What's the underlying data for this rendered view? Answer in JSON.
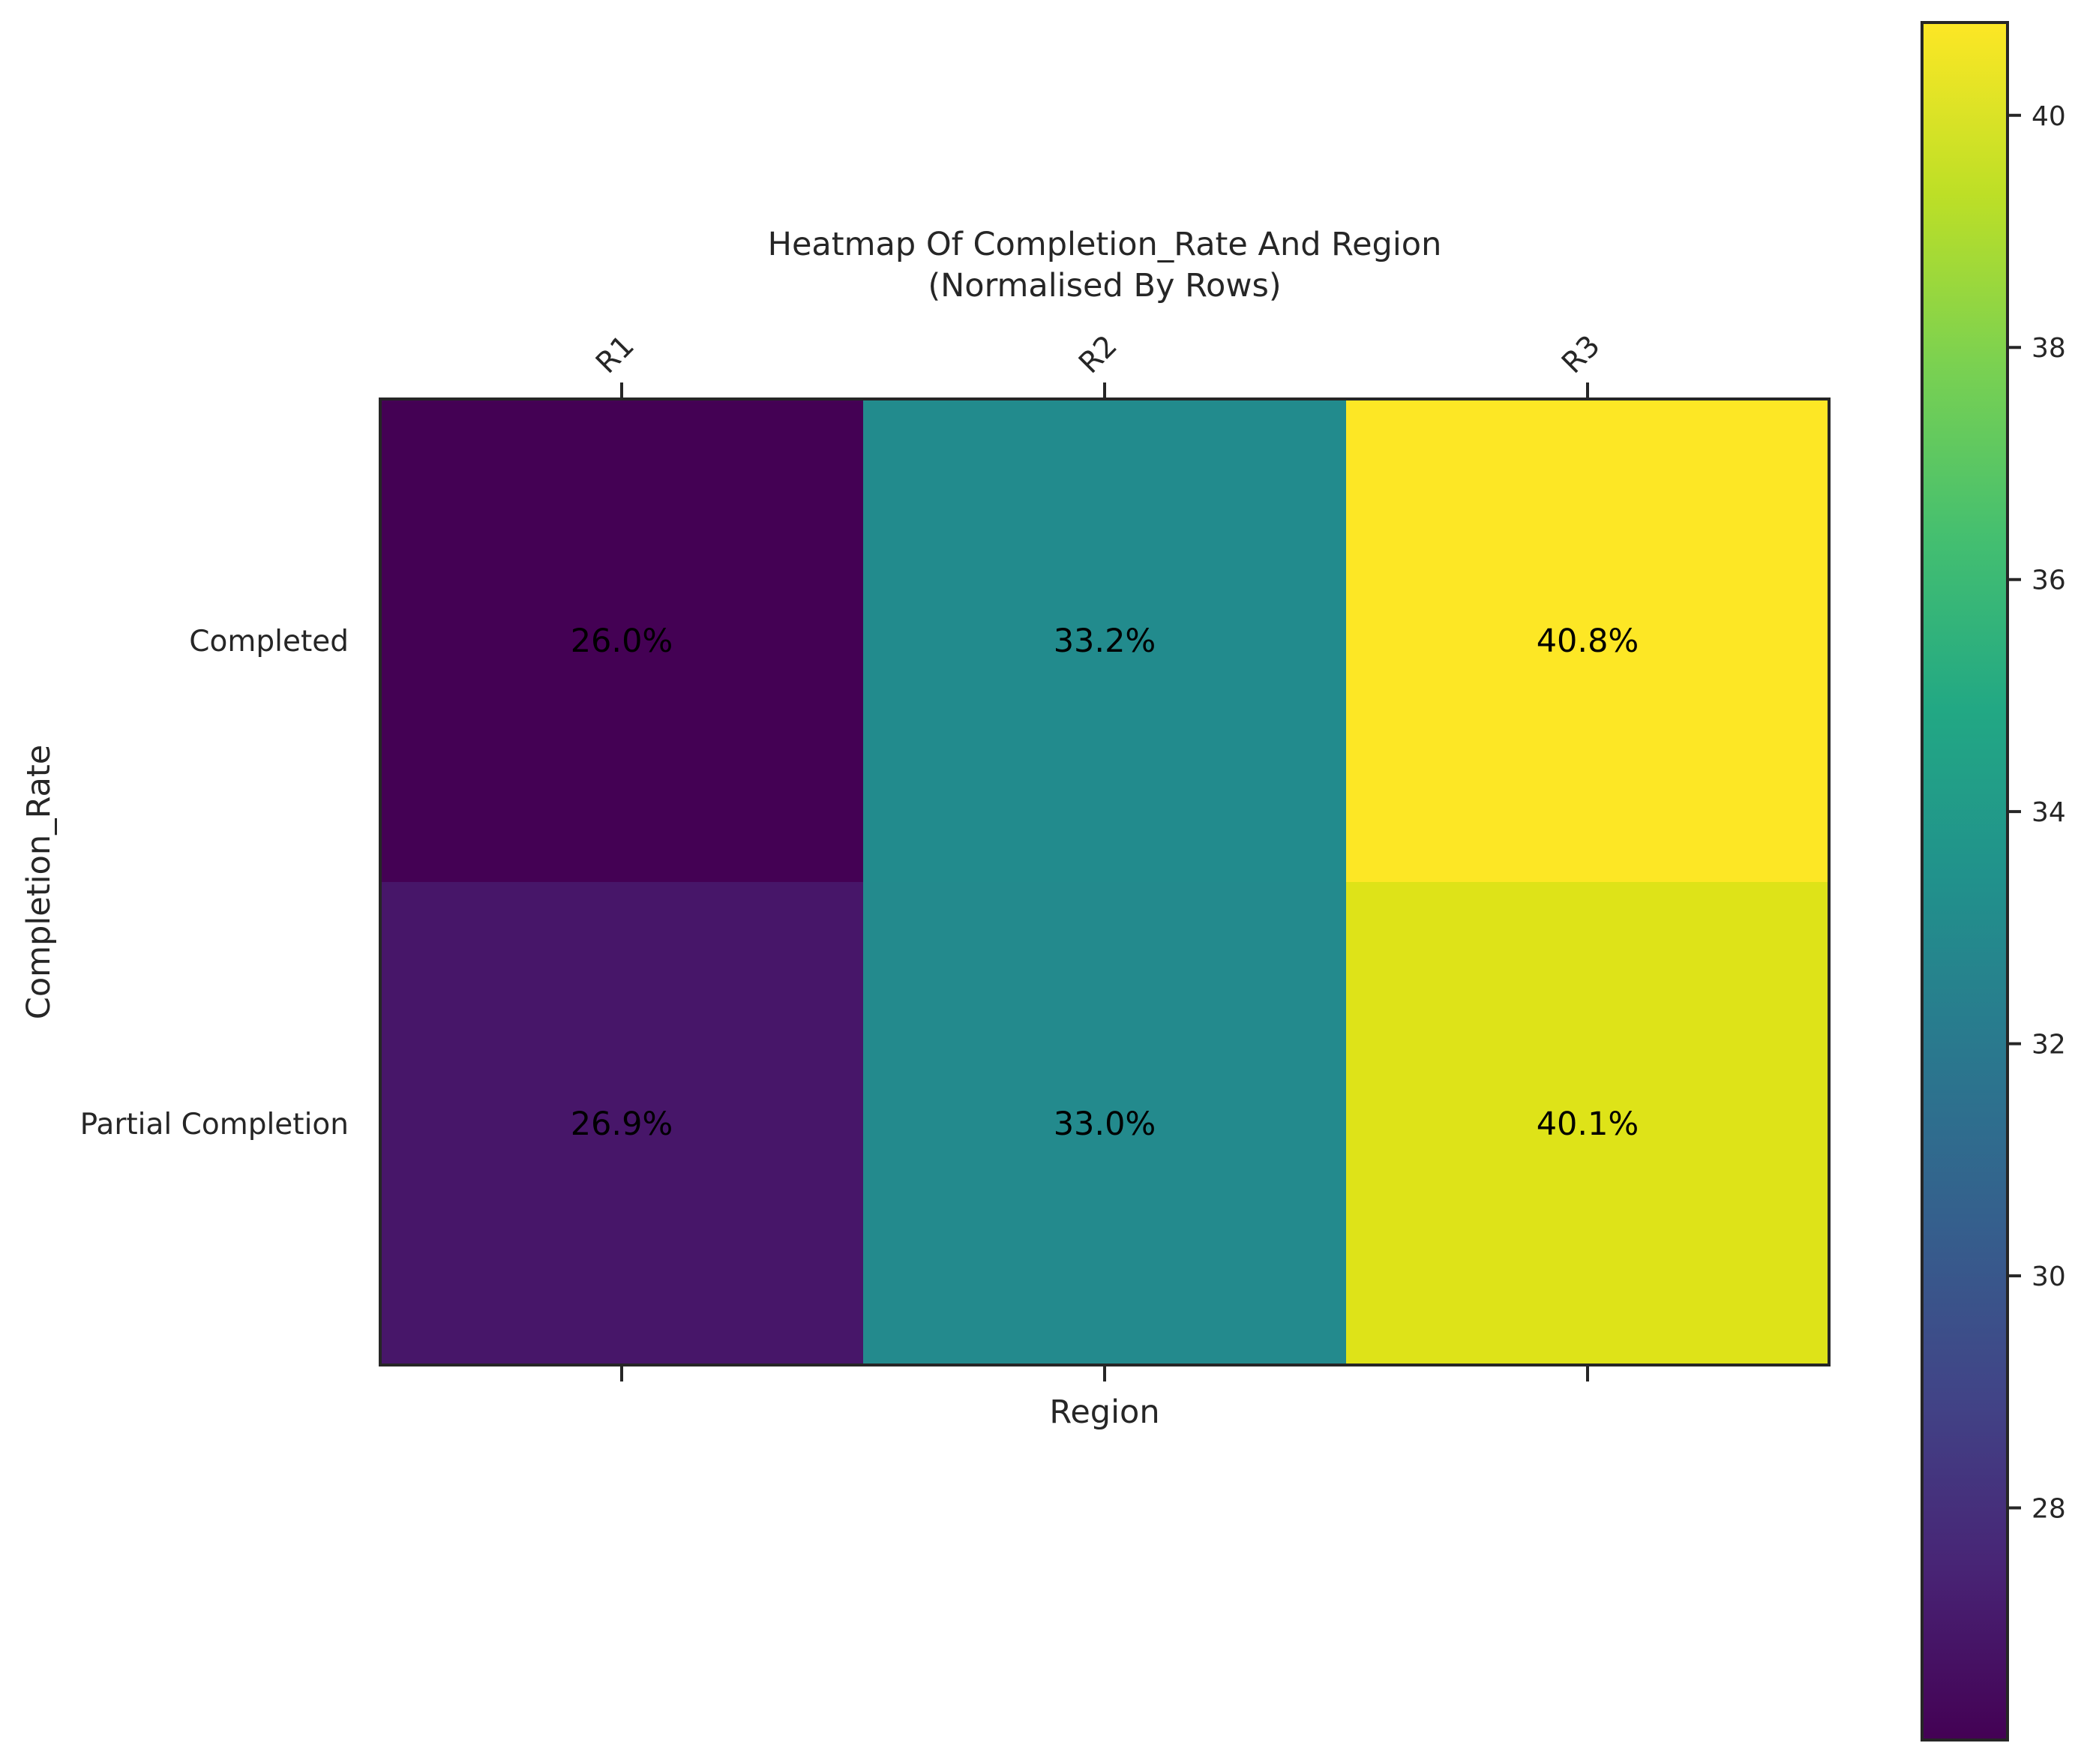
{
  "chart_data": {
    "type": "heatmap",
    "title": "Heatmap Of Completion_Rate And Region",
    "subtitle": "(Normalised By Rows)",
    "xlabel": "Region",
    "ylabel": "Completion_Rate",
    "x_categories": [
      "R1",
      "R2",
      "R3"
    ],
    "y_categories": [
      "Completed",
      "Partial Completion"
    ],
    "values": [
      [
        26.0,
        33.2,
        40.8
      ],
      [
        26.9,
        33.0,
        40.1
      ]
    ],
    "cell_labels": [
      [
        "26.0%",
        "33.2%",
        "40.8%"
      ],
      [
        "26.9%",
        "33.0%",
        "40.1%"
      ]
    ],
    "colormap": "viridis",
    "colorbar": {
      "range": [
        26.0,
        40.8
      ],
      "ticks": [
        28,
        30,
        32,
        34,
        36,
        38,
        40
      ]
    },
    "colors": {
      "cells": [
        [
          "#440154",
          "#228b8d",
          "#fde725"
        ],
        [
          "#471669",
          "#238a8d",
          "#dee318"
        ]
      ]
    },
    "grid": false
  }
}
